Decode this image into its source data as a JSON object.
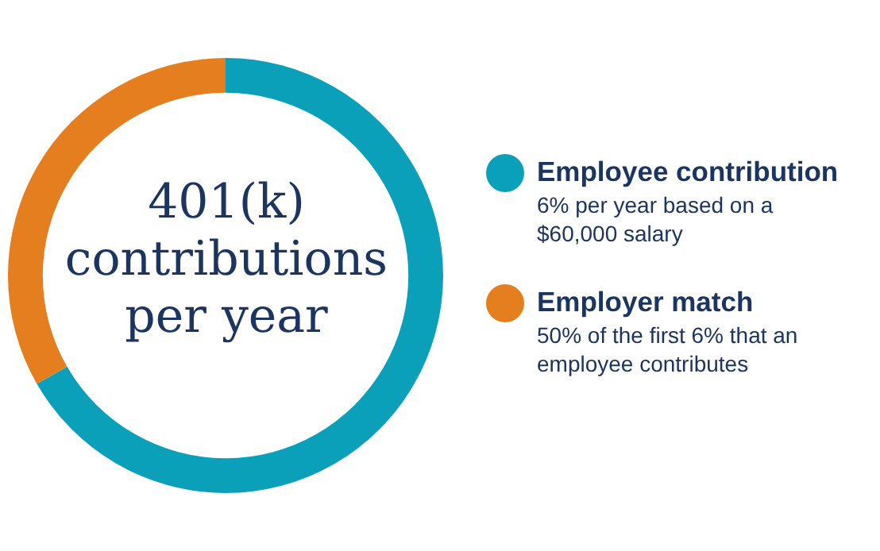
{
  "chart_data": {
    "type": "donut",
    "title": "401(k) contributions per year",
    "categories": [
      "Employee contribution",
      "Employer match"
    ],
    "values": [
      66.7,
      33.3
    ],
    "colors": [
      "#0ba0b9",
      "#e57e1e"
    ],
    "legend": "right",
    "annotations": [
      "6% per year based on a $60,000 salary",
      "50% of the first 6% that an employee contributes"
    ]
  }
}
